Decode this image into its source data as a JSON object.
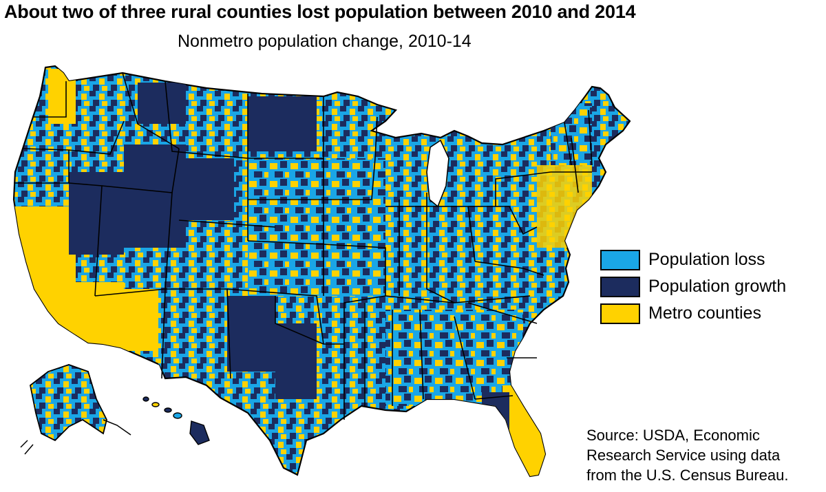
{
  "title": "About two of three rural counties lost population between 2010 and 2014",
  "subtitle": "Nonmetro population change, 2010-14",
  "colors": {
    "loss": "#1aa6e6",
    "growth": "#1c2c5e",
    "metro": "#ffd200",
    "border": "#000000"
  },
  "legend": [
    {
      "label": "Population loss",
      "color": "#1aa6e6",
      "icon": "swatch-loss"
    },
    {
      "label": "Population growth",
      "color": "#1c2c5e",
      "icon": "swatch-growth"
    },
    {
      "label": "Metro counties",
      "color": "#ffd200",
      "icon": "swatch-metro"
    }
  ],
  "source": {
    "line1": "Source: USDA, Economic",
    "line2": "Research Service using data",
    "line3": "from the U.S. Census Bureau."
  }
}
